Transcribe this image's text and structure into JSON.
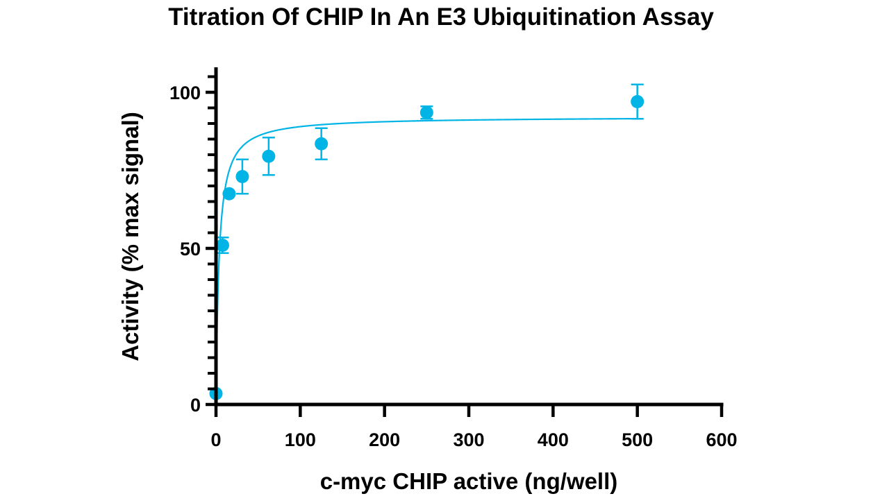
{
  "chart_data": {
    "type": "scatter",
    "title": "Titration Of CHIP In An E3 Ubiquitination Assay",
    "xlabel": "c-myc CHIP active (ng/well)",
    "ylabel": "Activity (% max signal)",
    "xlim": [
      0,
      600
    ],
    "ylim": [
      0,
      108
    ],
    "x_ticks": [
      0,
      100,
      200,
      300,
      400,
      500,
      600
    ],
    "x_tick_labels": [
      "0",
      "100",
      "200",
      "300",
      "400",
      "500",
      "600"
    ],
    "y_ticks": [
      0,
      50,
      100
    ],
    "y_tick_labels": [
      "0",
      "50",
      "100"
    ],
    "y_minor_step": 5,
    "grid": false,
    "legend": "none",
    "color": "#00b4e6",
    "series": [
      {
        "x": [
          0,
          7.8,
          15.6,
          31.25,
          62.5,
          125,
          250,
          500
        ],
        "y": [
          3.5,
          51,
          67.5,
          73,
          79.5,
          83.5,
          93.5,
          97
        ],
        "y_error": [
          0,
          2.5,
          0,
          5.5,
          6,
          5,
          2,
          5.5
        ],
        "fit": {
          "model": "hyperbolic",
          "vmax": 92.2,
          "k": 3.6,
          "x_range": [
            0,
            500
          ]
        }
      }
    ]
  }
}
